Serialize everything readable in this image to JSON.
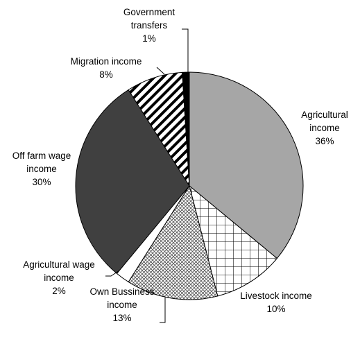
{
  "chart_data": {
    "type": "pie",
    "title": "",
    "start_angle_deg": 90,
    "direction": "clockwise",
    "slices": [
      {
        "label": "Agricultural income",
        "value": 36,
        "value_label": "36%",
        "pattern": "gray"
      },
      {
        "label": "Livestock income",
        "value": 10,
        "value_label": "10%",
        "pattern": "grid"
      },
      {
        "label": "Own Bussiness income",
        "value": 13,
        "value_label": "13%",
        "pattern": "crosshatch"
      },
      {
        "label": "Agricultural wage income",
        "value": 2,
        "value_label": "2%",
        "pattern": "white"
      },
      {
        "label": "Off farm wage income",
        "value": 30,
        "value_label": "30%",
        "pattern": "dark"
      },
      {
        "label": "Migration income",
        "value": 8,
        "value_label": "8%",
        "pattern": "diagonal"
      },
      {
        "label": "Government transfers",
        "value": 1,
        "value_label": "1%",
        "pattern": "black"
      }
    ],
    "data_labels": [
      {
        "lines": [
          "Agricultural",
          "income",
          "36%"
        ]
      },
      {
        "lines": [
          "Livestock income",
          "10%"
        ]
      },
      {
        "lines": [
          "Own Bussiness",
          "income",
          "13%"
        ]
      },
      {
        "lines": [
          "Agricultural wage",
          "income",
          "2%"
        ]
      },
      {
        "lines": [
          "Off farm wage",
          "income",
          "30%"
        ]
      },
      {
        "lines": [
          "Migration income",
          "8%"
        ]
      },
      {
        "lines": [
          "Government",
          "transfers",
          "1%"
        ]
      }
    ]
  }
}
